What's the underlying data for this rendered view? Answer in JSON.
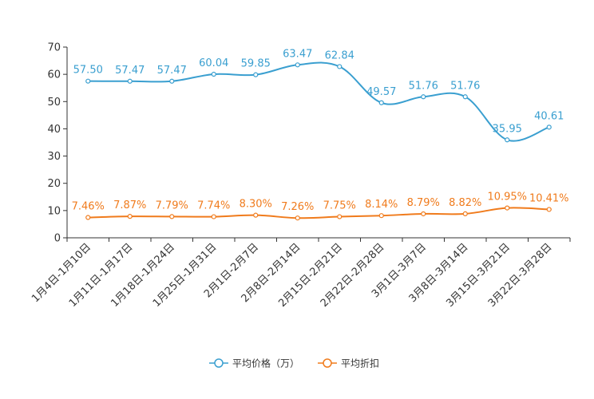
{
  "chart_data": {
    "type": "line",
    "title": "",
    "xlabel": "",
    "ylabel": "",
    "ylim": [
      0,
      70
    ],
    "yticks": [
      0,
      10,
      20,
      30,
      40,
      50,
      60,
      70
    ],
    "grid": false,
    "legend_position": "bottom-center",
    "categories": [
      "1月4日-1月10日",
      "1月11日-1月17日",
      "1月18日-1月24日",
      "1月25日-1月31日",
      "2月1日-2月7日",
      "2月8日-2月14日",
      "2月15日-2月21日",
      "2月22日-2月28日",
      "3月1日-3月7日",
      "3月8日-3月14日",
      "3月15日-3月21日",
      "3月22日-3月28日"
    ],
    "series": [
      {
        "name": "平均价格（万）",
        "color": "#3a9fd0",
        "values": [
          57.5,
          57.47,
          57.47,
          60.04,
          59.85,
          63.47,
          62.84,
          49.57,
          51.76,
          51.76,
          35.95,
          40.61
        ],
        "labels": [
          "57.50",
          "57.47",
          "57.47",
          "60.04",
          "59.85",
          "63.47",
          "62.84",
          "49.57",
          "51.76",
          "51.76",
          "35.95",
          "40.61"
        ]
      },
      {
        "name": "平均折扣",
        "color": "#f07b1c",
        "values": [
          7.46,
          7.87,
          7.79,
          7.74,
          8.3,
          7.26,
          7.75,
          8.14,
          8.79,
          8.82,
          10.95,
          10.41
        ],
        "labels": [
          "7.46%",
          "7.87%",
          "7.79%",
          "7.74%",
          "8.30%",
          "7.26%",
          "7.75%",
          "8.14%",
          "8.79%",
          "8.82%",
          "10.95%",
          "10.41%"
        ]
      }
    ]
  }
}
